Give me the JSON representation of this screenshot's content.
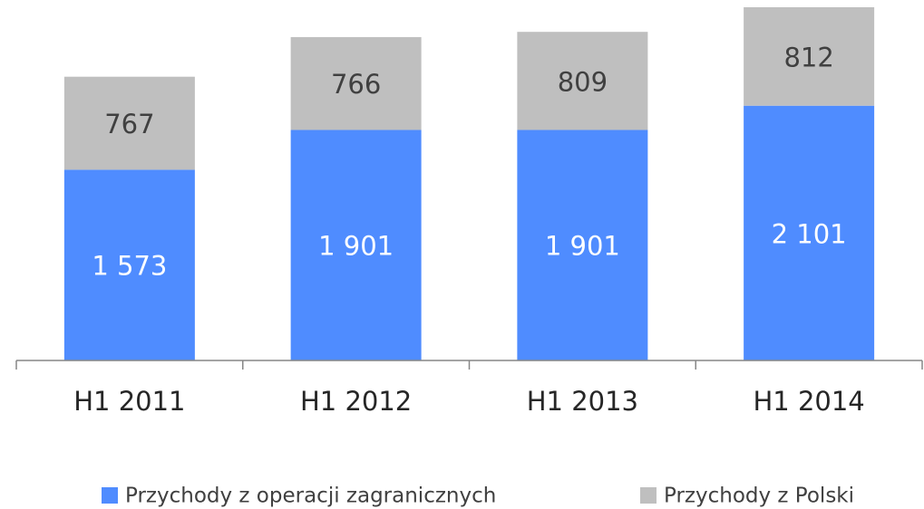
{
  "chart_data": {
    "type": "bar",
    "stacked": true,
    "categories": [
      "H1 2011",
      "H1 2012",
      "H1 2013",
      "H1 2014"
    ],
    "series": [
      {
        "name": "Przychody z operacji zagranicznych",
        "color": "#4f8cff",
        "values": [
          1573,
          1901,
          1901,
          2101
        ],
        "value_labels": [
          "1 573",
          "1 901",
          "1 901",
          "2 101"
        ]
      },
      {
        "name": "Przychody z Polski",
        "color": "#bfbfbf",
        "values": [
          767,
          766,
          809,
          812
        ]
      }
    ],
    "legend": "bottom"
  }
}
